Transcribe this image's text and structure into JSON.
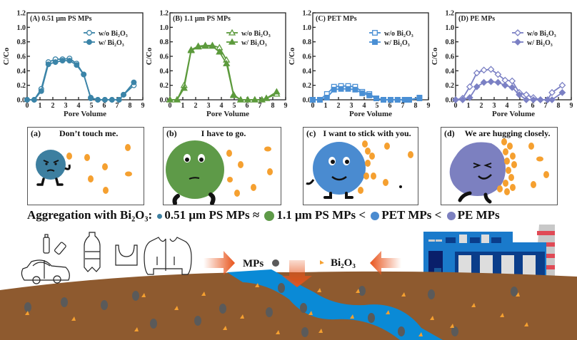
{
  "chart_data": [
    {
      "type": "line",
      "title": "(A) 0.51 μm PS MPs",
      "xlabel": "Pore Volume",
      "ylabel": "C/Co",
      "xlim": [
        0,
        9
      ],
      "ylim": [
        0,
        1.2
      ],
      "xticks": [
        "0",
        "1",
        "2",
        "3",
        "4",
        "5",
        "6",
        "7",
        "8",
        "9"
      ],
      "yticks": [
        "0.0",
        "0.2",
        "0.4",
        "0.6",
        "0.8",
        "1.0",
        "1.2"
      ],
      "color": "#3b84a8",
      "marker_open": "circle",
      "legend": "top-right",
      "series": [
        {
          "name": "w/o Bi2O3",
          "x": [
            0,
            0.55,
            1.1,
            1.65,
            2.2,
            2.75,
            3.3,
            3.85,
            4.4,
            4.95,
            5.5,
            6.05,
            6.6,
            7.15,
            7.5,
            8.3
          ],
          "y": [
            0,
            0,
            0.15,
            0.52,
            0.56,
            0.56,
            0.57,
            0.5,
            0.35,
            0.03,
            0,
            0,
            0,
            0,
            0.07,
            0.2
          ]
        },
        {
          "name": "w/ Bi2O3",
          "x": [
            0,
            0.55,
            1.1,
            1.65,
            2.2,
            2.75,
            3.3,
            3.85,
            4.4,
            4.95,
            5.5,
            6.05,
            6.6,
            7.15,
            7.5,
            8.3
          ],
          "y": [
            0,
            0,
            0.12,
            0.49,
            0.52,
            0.54,
            0.54,
            0.48,
            0.35,
            0.02,
            0,
            0,
            0,
            0,
            0.07,
            0.24
          ]
        }
      ]
    },
    {
      "type": "line",
      "title": "(B) 1.1 μm PS MPs",
      "xlabel": "Pore Volume",
      "ylabel": "C/Co",
      "xlim": [
        0,
        9
      ],
      "ylim": [
        0,
        1.2
      ],
      "xticks": [
        "0",
        "1",
        "2",
        "3",
        "4",
        "5",
        "6",
        "7",
        "8",
        "9"
      ],
      "yticks": [
        "0.0",
        "0.2",
        "0.4",
        "0.6",
        "0.8",
        "1.0",
        "1.2"
      ],
      "color": "#5c9a3c",
      "marker_open": "triangle",
      "legend": "top-right",
      "series": [
        {
          "name": "w/o Bi2O3",
          "x": [
            0,
            0.55,
            1.1,
            1.65,
            2.2,
            2.75,
            3.3,
            3.85,
            4.4,
            4.95,
            5.5,
            6.05,
            6.6,
            7.15,
            7.5,
            8.3
          ],
          "y": [
            0,
            0,
            0.2,
            0.69,
            0.74,
            0.75,
            0.75,
            0.72,
            0.55,
            0.07,
            0,
            0,
            0,
            0,
            0.02,
            0.08
          ]
        },
        {
          "name": "w/ Bi2O3",
          "x": [
            0,
            0.55,
            1.1,
            1.65,
            2.2,
            2.75,
            3.3,
            3.85,
            4.4,
            4.95,
            5.5,
            6.05,
            6.6,
            7.15,
            7.5,
            8.3
          ],
          "y": [
            0,
            0,
            0.16,
            0.68,
            0.73,
            0.74,
            0.74,
            0.66,
            0.5,
            0.06,
            0,
            0,
            0,
            0,
            0.02,
            0.11
          ]
        }
      ]
    },
    {
      "type": "line",
      "title": "(C) PET MPs",
      "xlabel": "Pore Volume",
      "ylabel": "C/Co",
      "xlim": [
        0,
        9
      ],
      "ylim": [
        0,
        1.2
      ],
      "xticks": [
        "0",
        "1",
        "2",
        "3",
        "4",
        "5",
        "6",
        "7",
        "8",
        "9"
      ],
      "yticks": [
        "0.0",
        "0.2",
        "0.4",
        "0.6",
        "0.8",
        "1.0",
        "1.2"
      ],
      "color": "#4a8fd4",
      "marker_open": "square",
      "legend": "top-right",
      "series": [
        {
          "name": "w/o Bi2O3",
          "x": [
            0,
            0.55,
            1.1,
            1.65,
            2.2,
            2.75,
            3.3,
            3.85,
            4.4,
            4.95,
            5.5,
            6.05,
            6.6,
            7.15,
            7.5,
            8.3
          ],
          "y": [
            0,
            0,
            0.08,
            0.18,
            0.19,
            0.19,
            0.18,
            0.11,
            0.08,
            0.02,
            0,
            0,
            0,
            0,
            0,
            0.02
          ]
        },
        {
          "name": "w/ Bi2O3",
          "x": [
            0,
            0.55,
            1.1,
            1.65,
            2.2,
            2.75,
            3.3,
            3.85,
            4.4,
            4.95,
            5.5,
            6.05,
            6.6,
            7.15,
            7.5,
            8.3
          ],
          "y": [
            0,
            0,
            0.03,
            0.14,
            0.15,
            0.15,
            0.14,
            0.09,
            0.06,
            0.02,
            0,
            0,
            0,
            0,
            0,
            0.03
          ]
        }
      ]
    },
    {
      "type": "line",
      "title": "(D) PE MPs",
      "xlabel": "Pore Volume",
      "ylabel": "C/Co",
      "xlim": [
        0,
        9
      ],
      "ylim": [
        0,
        1.2
      ],
      "xticks": [
        "0",
        "1",
        "2",
        "3",
        "4",
        "5",
        "6",
        "7",
        "8",
        "9"
      ],
      "yticks": [
        "0.0",
        "0.2",
        "0.4",
        "0.6",
        "0.8",
        "1.0",
        "1.2"
      ],
      "color": "#7b80c4",
      "marker_open": "diamond",
      "legend": "top-right",
      "series": [
        {
          "name": "w/o Bi2O3",
          "x": [
            0,
            0.55,
            1.1,
            1.65,
            2.2,
            2.75,
            3.3,
            3.85,
            4.4,
            4.95,
            5.5,
            6.05,
            6.6,
            7.15,
            7.5,
            8.3
          ],
          "y": [
            0,
            0.02,
            0.18,
            0.37,
            0.41,
            0.42,
            0.35,
            0.27,
            0.26,
            0.1,
            0.07,
            0.03,
            0,
            0,
            0.1,
            0.2
          ]
        },
        {
          "name": "w/ Bi2O3",
          "x": [
            0,
            0.55,
            1.1,
            1.65,
            2.2,
            2.75,
            3.3,
            3.85,
            4.4,
            4.95,
            5.5,
            6.05,
            6.6,
            7.15,
            7.5,
            8.3
          ],
          "y": [
            0,
            0,
            0.03,
            0.18,
            0.24,
            0.25,
            0.24,
            0.2,
            0.17,
            0.07,
            0,
            0,
            0,
            0,
            0,
            0.1
          ]
        }
      ]
    }
  ],
  "legend_labels": {
    "without": "w/o Bi₂O₃",
    "with": "w/ Bi₂O₃"
  },
  "panels": [
    {
      "label": "(a)",
      "text": "Don’t touch me.",
      "color": "#3d7fa0"
    },
    {
      "label": "(b)",
      "text": "I have to go.",
      "color": "#5e9a48"
    },
    {
      "label": "(c)",
      "text": "I want to stick with you.",
      "color": "#4a8bd0"
    },
    {
      "label": "(d)",
      "text": "We are hugging closely.",
      "color": "#7c80c0"
    }
  ],
  "summary": {
    "prefix": "Aggregation with Bi₂O₃:",
    "item1": "0.51 μm PS MPs",
    "sep1": "≈",
    "item2": "1.1 μm PS MPs",
    "sep2": "<",
    "item3": "PET MPs",
    "sep3": "<",
    "item4": "PE MPs"
  },
  "scene": {
    "mps_label": "MPs",
    "bi2o3_label": "Bi₂O₃",
    "soil_color": "#8e5a2f",
    "river_color": "#0a8ad6",
    "arrow_color": "#e8531a",
    "mp_color": "#5a5a5a",
    "bi2o3_color": "#f5a030"
  }
}
